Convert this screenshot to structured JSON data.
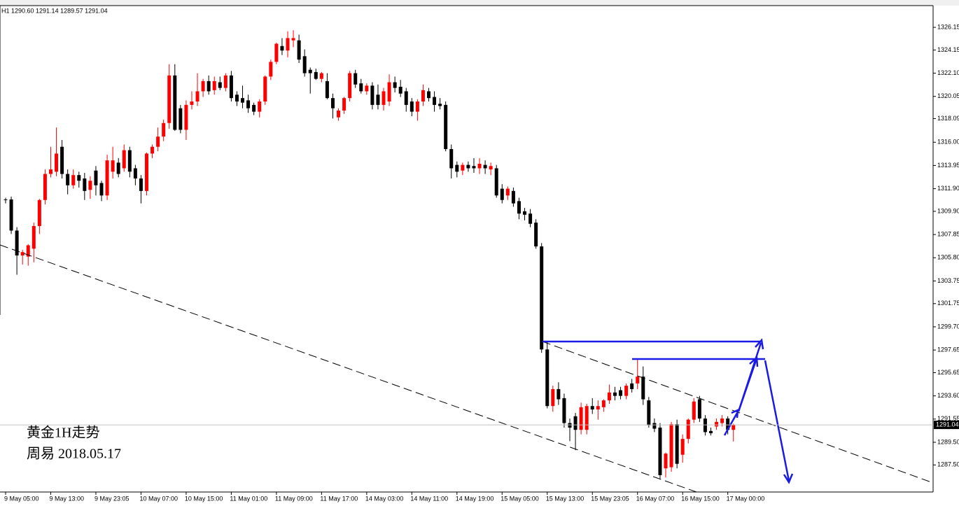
{
  "chart_data": {
    "type": "candlestick",
    "header": "H1 1290.60 1291.14 1289.57 1291.04",
    "annotations": [
      "黄金1H走势",
      "周易 2018.05.17"
    ],
    "last_price_label": "1291.04",
    "up_color": "#ff0000",
    "down_color": "#000000",
    "ylim": [
      1285.11,
      1328.07
    ],
    "yticks": [
      1326.15,
      1324.15,
      {
        "value": 1322.1,
        "label": "1322.10"
      },
      1320.05,
      1318.09,
      {
        "value": 1316,
        "label": "1316.00"
      },
      1313.95,
      {
        "value": 1311.9,
        "label": "1311.90"
      },
      {
        "value": 1309.9,
        "label": "1309.90"
      },
      1307.85,
      {
        "value": 1305.8,
        "label": "1305.80"
      },
      1303.75,
      1301.75,
      {
        "value": 1299.7,
        "label": "1299.70"
      },
      1297.65,
      1295.65,
      {
        "value": 1293.6,
        "label": "1293.60"
      },
      1291.55,
      {
        "value": 1289.5,
        "label": "1289.50"
      },
      {
        "value": 1287.5,
        "label": "1287.50"
      }
    ],
    "categories": [
      "9 May 05:00",
      null,
      null,
      null,
      null,
      null,
      null,
      null,
      "9 May 13:00",
      null,
      null,
      null,
      null,
      null,
      null,
      null,
      "9 May 23:05",
      null,
      null,
      null,
      null,
      null,
      null,
      null,
      "10 May 07:00",
      null,
      null,
      null,
      null,
      null,
      null,
      null,
      "10 May 15:00",
      null,
      null,
      null,
      null,
      null,
      null,
      null,
      "11 May 01:00",
      null,
      null,
      null,
      null,
      null,
      null,
      null,
      "11 May 09:00",
      null,
      null,
      null,
      null,
      null,
      null,
      null,
      "11 May 17:00",
      null,
      null,
      null,
      null,
      null,
      null,
      null,
      "14 May 03:00",
      null,
      null,
      null,
      null,
      null,
      null,
      null,
      "14 May 11:00",
      null,
      null,
      null,
      null,
      null,
      null,
      null,
      "14 May 19:00",
      null,
      null,
      null,
      null,
      null,
      null,
      null,
      "15 May 05:00",
      null,
      null,
      null,
      null,
      null,
      null,
      null,
      "15 May 13:00",
      null,
      null,
      null,
      null,
      null,
      null,
      null,
      "15 May 23:05",
      null,
      null,
      null,
      null,
      null,
      null,
      null,
      "16 May 07:00",
      null,
      null,
      null,
      null,
      null,
      null,
      null,
      "16 May 15:00",
      null,
      null,
      null,
      null,
      null,
      null,
      null,
      "17 May 00:00",
      null
    ],
    "ohlc": [
      [
        1310.95,
        1311.1,
        1310.6,
        1310.9
      ],
      [
        1310.95,
        1311.2,
        1307.9,
        1308.2
      ],
      [
        1308.2,
        1308.5,
        1304.3,
        1306.0
      ],
      [
        1306.0,
        1306.5,
        1305.2,
        1306.3
      ],
      [
        1305.9,
        1307.0,
        1305.1,
        1306.9
      ],
      [
        1306.6,
        1308.9,
        1305.4,
        1308.6
      ],
      [
        1308.6,
        1311.0,
        1307.9,
        1310.9
      ],
      [
        1310.9,
        1313.6,
        1310.5,
        1313.2
      ],
      [
        1313.2,
        1315.6,
        1312.9,
        1313.6
      ],
      [
        1313.4,
        1317.3,
        1313.0,
        1315.0
      ],
      [
        1315.6,
        1316.2,
        1312.8,
        1313.2
      ],
      [
        1313.2,
        1313.6,
        1311.4,
        1312.2
      ],
      [
        1312.2,
        1313.6,
        1311.9,
        1313.1
      ],
      [
        1313.1,
        1313.4,
        1312.0,
        1312.6
      ],
      [
        1312.8,
        1313.3,
        1310.9,
        1311.7
      ],
      [
        1311.8,
        1313.0,
        1311.0,
        1312.6
      ],
      [
        1313.5,
        1313.9,
        1311.3,
        1312.2
      ],
      [
        1312.4,
        1312.6,
        1310.8,
        1311.3
      ],
      [
        1311.3,
        1314.9,
        1310.9,
        1314.4
      ],
      [
        1313.4,
        1315.6,
        1312.8,
        1314.4
      ],
      [
        1314.2,
        1314.6,
        1312.9,
        1313.2
      ],
      [
        1313.7,
        1315.8,
        1313.4,
        1315.3
      ],
      [
        1315.3,
        1315.6,
        1312.9,
        1313.4
      ],
      [
        1313.7,
        1314.0,
        1312.2,
        1312.8
      ],
      [
        1312.8,
        1313.1,
        1310.6,
        1311.7
      ],
      [
        1311.7,
        1315.1,
        1311.3,
        1315.0
      ],
      [
        1315.0,
        1315.8,
        1314.6,
        1315.6
      ],
      [
        1315.6,
        1317.3,
        1315.2,
        1316.5
      ],
      [
        1316.5,
        1318.0,
        1316.1,
        1317.7
      ],
      [
        1317.7,
        1322.9,
        1317.2,
        1321.9
      ],
      [
        1321.9,
        1322.9,
        1317.0,
        1317.1
      ],
      [
        1319.0,
        1319.3,
        1316.8,
        1317.1
      ],
      [
        1317.1,
        1319.7,
        1316.2,
        1319.3
      ],
      [
        1319.3,
        1320.5,
        1318.9,
        1319.6
      ],
      [
        1319.6,
        1322.1,
        1319.2,
        1320.5
      ],
      [
        1320.5,
        1321.6,
        1320.0,
        1321.4
      ],
      [
        1321.4,
        1321.9,
        1320.2,
        1320.5
      ],
      [
        1320.6,
        1321.8,
        1320.2,
        1321.4
      ],
      [
        1321.3,
        1321.8,
        1320.6,
        1320.8
      ],
      [
        1320.8,
        1322.1,
        1320.5,
        1321.9
      ],
      [
        1321.9,
        1322.3,
        1319.6,
        1319.9
      ],
      [
        1320.2,
        1320.5,
        1319.2,
        1319.6
      ],
      [
        1319.9,
        1321.0,
        1319.0,
        1319.5
      ],
      [
        1319.7,
        1320.2,
        1318.6,
        1319.0
      ],
      [
        1319.3,
        1319.5,
        1318.4,
        1318.7
      ],
      [
        1318.7,
        1319.8,
        1318.2,
        1319.6
      ],
      [
        1319.6,
        1321.9,
        1319.3,
        1321.8
      ],
      [
        1321.8,
        1323.3,
        1321.5,
        1323.1
      ],
      [
        1323.1,
        1324.8,
        1322.9,
        1324.7
      ],
      [
        1324.5,
        1325.2,
        1323.7,
        1324.1
      ],
      [
        1324.1,
        1325.8,
        1323.5,
        1325.2
      ],
      [
        1325.0,
        1325.9,
        1324.4,
        1325.2
      ],
      [
        1325.0,
        1325.5,
        1323.0,
        1323.3
      ],
      [
        1323.6,
        1324.2,
        1321.8,
        1322.1
      ],
      [
        1322.4,
        1322.6,
        1320.3,
        1322.1
      ],
      [
        1322.2,
        1322.5,
        1321.5,
        1321.6
      ],
      [
        1321.6,
        1322.2,
        1321.3,
        1322.1
      ],
      [
        1321.4,
        1322.1,
        1319.8,
        1319.9
      ],
      [
        1319.9,
        1320.3,
        1318.1,
        1319.0
      ],
      [
        1318.2,
        1319.0,
        1317.9,
        1318.8
      ],
      [
        1318.8,
        1320.0,
        1318.5,
        1319.9
      ],
      [
        1319.9,
        1322.3,
        1319.6,
        1322.1
      ],
      [
        1322.1,
        1322.4,
        1320.8,
        1321.1
      ],
      [
        1321.2,
        1321.6,
        1320.3,
        1320.5
      ],
      [
        1320.5,
        1321.2,
        1320.2,
        1321.0
      ],
      [
        1321.0,
        1321.3,
        1318.9,
        1319.3
      ],
      [
        1320.2,
        1321.1,
        1318.9,
        1319.3
      ],
      [
        1319.3,
        1320.8,
        1318.8,
        1320.5
      ],
      [
        1319.6,
        1322.0,
        1319.2,
        1321.3
      ],
      [
        1321.3,
        1321.8,
        1320.4,
        1320.8
      ],
      [
        1320.9,
        1321.5,
        1320.0,
        1320.3
      ],
      [
        1320.5,
        1320.8,
        1318.7,
        1319.3
      ],
      [
        1319.6,
        1319.9,
        1318.3,
        1318.7
      ],
      [
        1318.7,
        1319.8,
        1317.9,
        1319.6
      ],
      [
        1319.6,
        1321.1,
        1319.2,
        1320.6
      ],
      [
        1320.5,
        1320.8,
        1319.6,
        1319.9
      ],
      [
        1320.0,
        1320.5,
        1318.7,
        1319.3
      ],
      [
        1319.4,
        1319.9,
        1318.9,
        1319.2
      ],
      [
        1319.3,
        1319.6,
        1315.2,
        1315.4
      ],
      [
        1315.4,
        1315.8,
        1312.8,
        1313.7
      ],
      [
        1314.0,
        1314.3,
        1312.9,
        1313.4
      ],
      [
        1313.5,
        1314.2,
        1313.1,
        1314.0
      ],
      [
        1314.0,
        1314.3,
        1313.4,
        1313.7
      ],
      [
        1313.9,
        1314.6,
        1313.3,
        1313.7
      ],
      [
        1313.7,
        1314.6,
        1313.2,
        1314.1
      ],
      [
        1314.0,
        1314.4,
        1313.2,
        1313.7
      ],
      [
        1313.6,
        1314.2,
        1313.1,
        1313.9
      ],
      [
        1313.7,
        1314.0,
        1311.1,
        1311.3
      ],
      [
        1311.9,
        1312.3,
        1310.6,
        1310.9
      ],
      [
        1311.3,
        1312.1,
        1310.9,
        1311.9
      ],
      [
        1311.7,
        1312.0,
        1310.3,
        1310.6
      ],
      [
        1310.8,
        1311.1,
        1309.2,
        1309.7
      ],
      [
        1309.9,
        1310.2,
        1309.1,
        1309.6
      ],
      [
        1309.7,
        1310.1,
        1308.5,
        1308.8
      ],
      [
        1308.9,
        1309.2,
        1306.6,
        1306.8
      ],
      [
        1306.8,
        1307.1,
        1297.4,
        1297.7
      ],
      [
        1297.7,
        1298.4,
        1292.5,
        1292.7
      ],
      [
        1292.7,
        1294.5,
        1292.2,
        1294.2
      ],
      [
        1294.2,
        1294.8,
        1292.8,
        1293.3
      ],
      [
        1293.4,
        1293.8,
        1290.8,
        1291.2
      ],
      [
        1291.2,
        1291.6,
        1289.6,
        1290.8
      ],
      [
        1291.8,
        1292.1,
        1288.8,
        1290.6
      ],
      [
        1290.6,
        1293.0,
        1290.2,
        1292.6
      ],
      [
        1290.6,
        1292.9,
        1290.2,
        1292.7
      ],
      [
        1292.7,
        1293.4,
        1292.0,
        1292.4
      ],
      [
        1292.4,
        1293.2,
        1291.5,
        1292.7
      ],
      [
        1292.6,
        1293.3,
        1292.2,
        1293.2
      ],
      [
        1293.2,
        1294.6,
        1292.9,
        1293.9
      ],
      [
        1293.9,
        1294.4,
        1293.2,
        1293.6
      ],
      [
        1294.1,
        1294.4,
        1293.3,
        1293.6
      ],
      [
        1293.6,
        1294.7,
        1293.3,
        1294.5
      ],
      [
        1294.7,
        1295.1,
        1293.9,
        1294.2
      ],
      [
        1294.7,
        1296.8,
        1294.2,
        1295.3
      ],
      [
        1295.3,
        1296.2,
        1292.8,
        1293.3
      ],
      [
        1293.2,
        1293.5,
        1290.8,
        1291.0
      ],
      [
        1291.2,
        1291.6,
        1290.4,
        1290.7
      ],
      [
        1290.8,
        1291.2,
        1286.3,
        1286.6
      ],
      [
        1287.2,
        1288.6,
        1286.4,
        1288.5
      ],
      [
        1287.3,
        1291.3,
        1286.9,
        1291.1
      ],
      [
        1291.1,
        1291.5,
        1287.2,
        1287.6
      ],
      [
        1288.4,
        1290.2,
        1287.7,
        1289.8
      ],
      [
        1289.8,
        1291.6,
        1289.4,
        1291.5
      ],
      [
        1291.5,
        1293.4,
        1291.2,
        1293.1
      ],
      [
        1293.3,
        1293.6,
        1291.3,
        1291.6
      ],
      [
        1291.6,
        1291.9,
        1290.1,
        1290.4
      ],
      [
        1290.5,
        1290.8,
        1290.1,
        1290.3
      ],
      [
        1290.9,
        1291.6,
        1290.6,
        1291.3
      ],
      [
        1291.2,
        1291.9,
        1290.9,
        1291.6
      ],
      [
        1291.6,
        1291.8,
        1290.2,
        1290.6
      ],
      [
        1290.6,
        1291.14,
        1289.57,
        1291.04
      ]
    ]
  }
}
